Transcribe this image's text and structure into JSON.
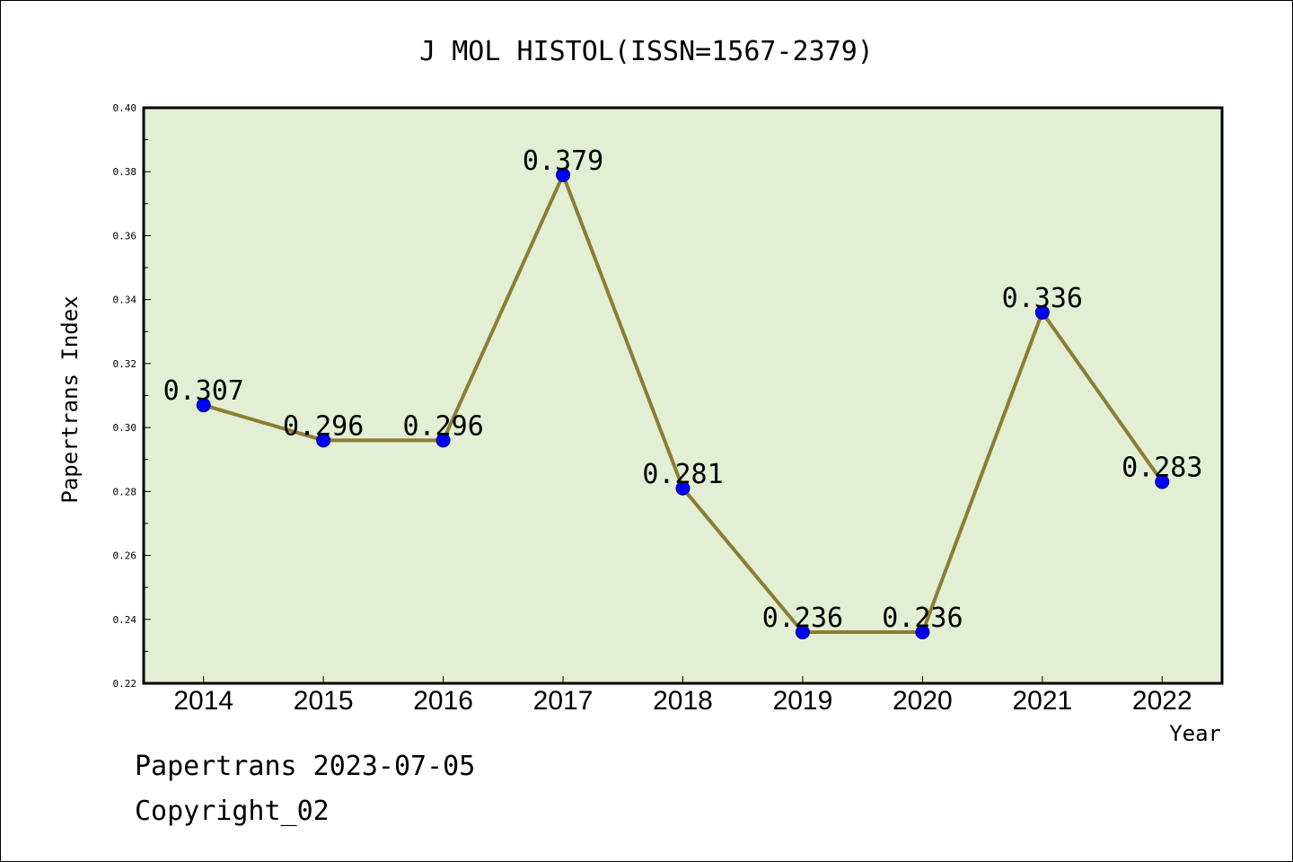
{
  "chart_data": {
    "type": "line",
    "title": "J MOL HISTOL(ISSN=1567-2379)",
    "xlabel": "Year",
    "ylabel": "Papertrans Index",
    "categories": [
      "2014",
      "2015",
      "2016",
      "2017",
      "2018",
      "2019",
      "2020",
      "2021",
      "2022"
    ],
    "series": [
      {
        "values": [
          0.307,
          0.296,
          0.296,
          0.379,
          0.281,
          0.236,
          0.236,
          0.336,
          0.283
        ],
        "data_labels": [
          "0.307",
          "0.296",
          "0.296",
          "0.379",
          "0.281",
          "0.236",
          "0.236",
          "0.336",
          "0.283"
        ]
      }
    ],
    "ylim": [
      0.22,
      0.4
    ],
    "y_ticks": [
      "0.22",
      "0.24",
      "0.26",
      "0.28",
      "0.30",
      "0.32",
      "0.34",
      "0.36",
      "0.38",
      "0.40"
    ],
    "grid": false,
    "legend": "none",
    "colors": {
      "plot_background": "#e2efd4",
      "line": "#8b7d34",
      "marker": "#0000ff",
      "frame": "#000000"
    }
  },
  "footer": {
    "date_label": "Papertrans 2023-07-05",
    "copyright": "Copyright_02"
  }
}
